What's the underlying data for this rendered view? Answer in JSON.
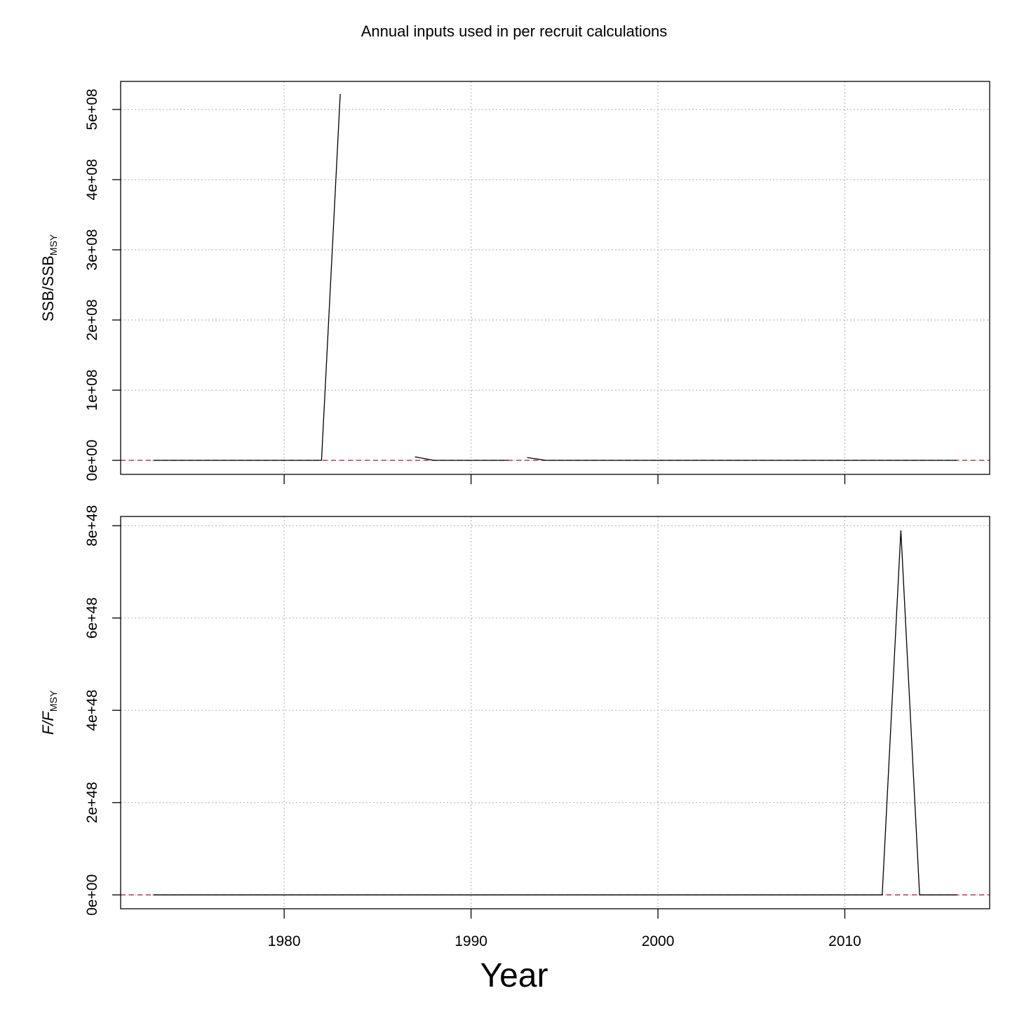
{
  "title": "Annual inputs used in per recruit calculations",
  "xlabel": "Year",
  "colors": {
    "line": "#000000",
    "reference": "#b2182b",
    "grid": "#bebebe",
    "frame": "#000000"
  },
  "chart_data": [
    {
      "type": "line",
      "ylabel_main": "SSB/SSB",
      "ylabel_sub": "MSY",
      "ylabel_italic": false,
      "xlim": [
        1971.2,
        1977.8
      ],
      "x_ticks": [
        1980,
        1990,
        2000,
        2010
      ],
      "x_tick_labels_shown": false,
      "ylim": [
        -20000000,
        540000000
      ],
      "y_ticks": [
        0,
        100000000,
        200000000,
        300000000,
        400000000,
        500000000
      ],
      "y_tick_labels": [
        "0e+00",
        "1e+08",
        "2e+08",
        "3e+08",
        "4e+08",
        "5e+08"
      ],
      "reference_line": 1,
      "grid": true,
      "series": [
        {
          "segments": [
            {
              "x": [
                1973,
                1974,
                1975,
                1976,
                1977,
                1978,
                1979,
                1980,
                1981,
                1982,
                1983
              ],
              "y": [
                0,
                0,
                0,
                0,
                0,
                0,
                0,
                0,
                0,
                0,
                522000000
              ]
            },
            {
              "x": [
                1987,
                1988,
                1989,
                1990,
                1991,
                1992
              ],
              "y": [
                5000000,
                0,
                0,
                0,
                0,
                0
              ]
            },
            {
              "x": [
                1993,
                1994,
                1995,
                1996,
                1997,
                1998,
                1999,
                2000,
                2001,
                2002,
                2003,
                2004,
                2005,
                2006,
                2007,
                2008,
                2009,
                2010,
                2011,
                2012,
                2013,
                2014,
                2015,
                2016
              ],
              "y": [
                4000000,
                0,
                0,
                0,
                0,
                0,
                0,
                0,
                0,
                0,
                0,
                0,
                0,
                0,
                0,
                0,
                0,
                0,
                0,
                0,
                0,
                0,
                0,
                0
              ]
            }
          ]
        }
      ]
    },
    {
      "type": "line",
      "ylabel_main": "F/F",
      "ylabel_sub": "MSY",
      "ylabel_italic": true,
      "ylim": [
        -3e+47,
        8.2e+48
      ],
      "y_ticks": [
        0,
        2e+48,
        4e+48,
        6e+48,
        8e+48
      ],
      "y_tick_labels": [
        "0e+00",
        "2e+48",
        "4e+48",
        "6e+48",
        "8e+48"
      ],
      "x_ticks": [
        1980,
        1990,
        2000,
        2010
      ],
      "x_tick_labels": [
        "1980",
        "1990",
        "2000",
        "2010"
      ],
      "x_tick_labels_shown": true,
      "reference_line": 1,
      "grid": true,
      "series": [
        {
          "segments": [
            {
              "x": [
                1973,
                1974,
                1975,
                1976,
                1977,
                1978,
                1979,
                1980,
                1981,
                1982,
                1983,
                1984,
                1985,
                1986,
                1987,
                1988,
                1989,
                1990,
                1991,
                1992,
                1993,
                1994,
                1995,
                1996,
                1997,
                1998,
                1999,
                2000,
                2001,
                2002,
                2003,
                2004,
                2005,
                2006,
                2007,
                2008,
                2009,
                2010,
                2011,
                2012,
                2013,
                2014,
                2015,
                2016
              ],
              "y": [
                0,
                0,
                0,
                0,
                0,
                0,
                0,
                0,
                0,
                0,
                0,
                0,
                0,
                0,
                0,
                0,
                0,
                0,
                0,
                0,
                0,
                0,
                0,
                0,
                0,
                0,
                0,
                0,
                0,
                0,
                0,
                0,
                0,
                0,
                0,
                0,
                0,
                0,
                0,
                0,
                7.9e+48,
                0,
                0,
                0
              ]
            }
          ]
        }
      ]
    }
  ]
}
